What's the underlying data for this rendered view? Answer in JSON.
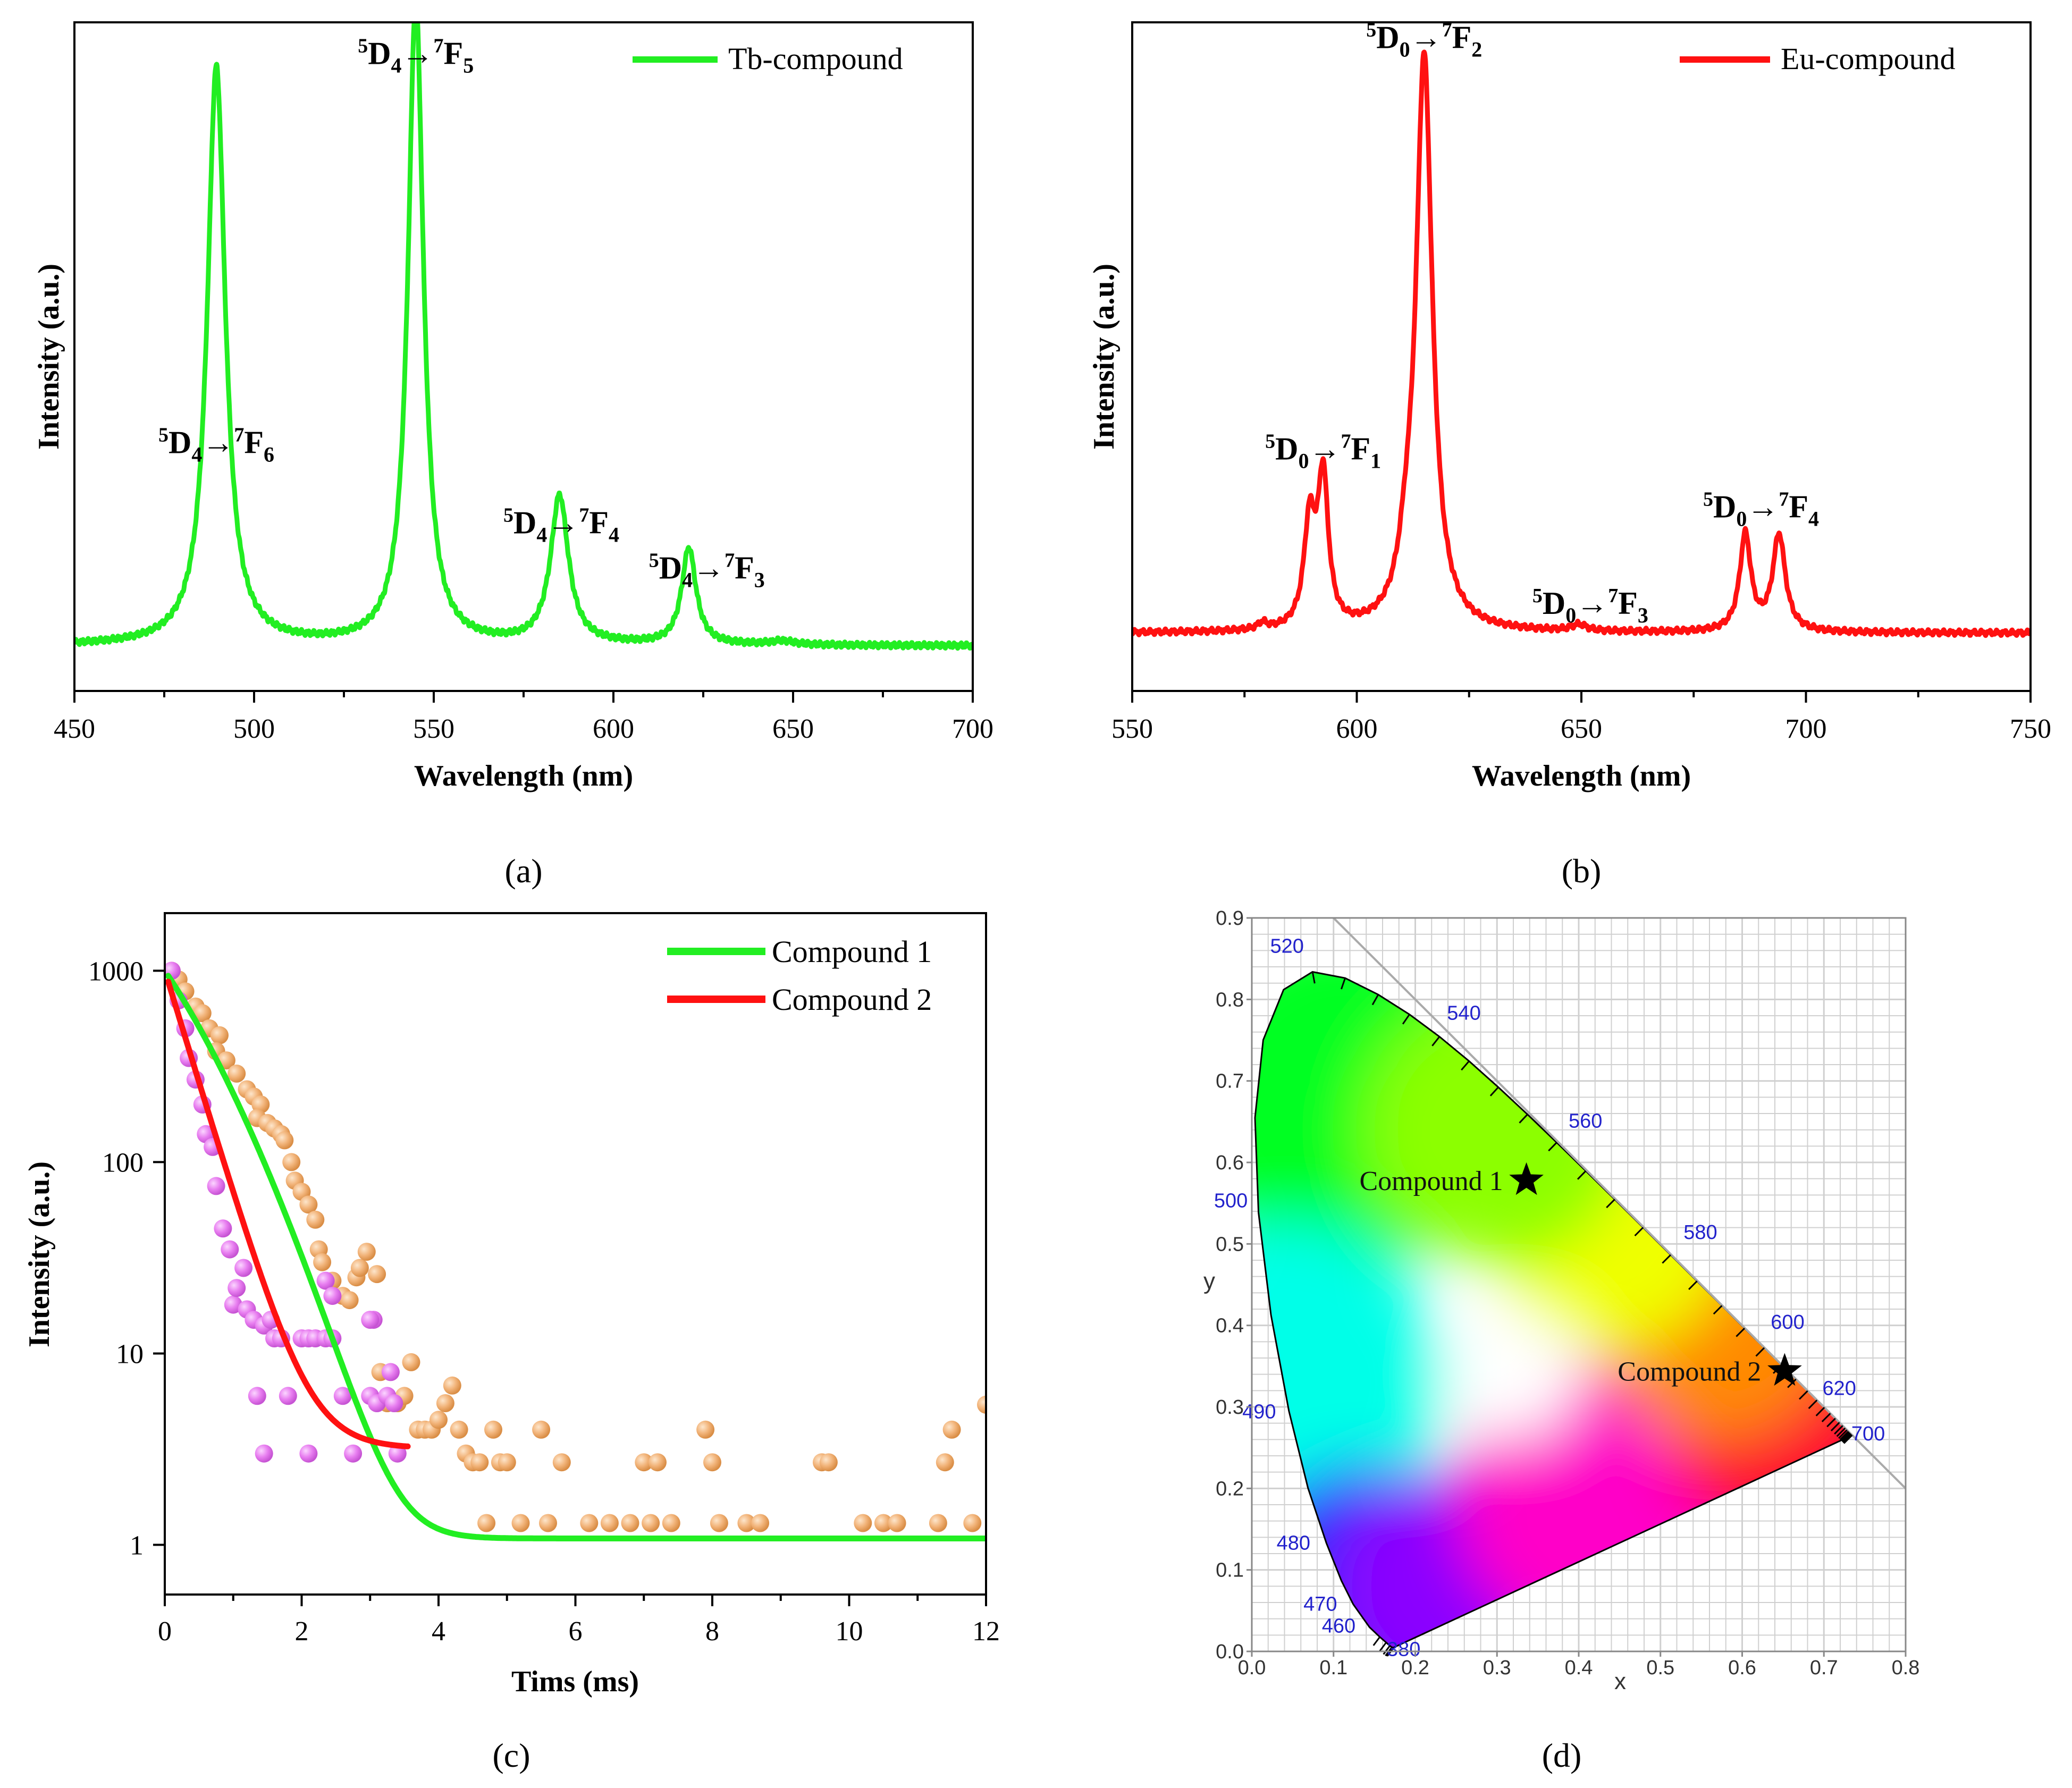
{
  "figure": {
    "panel_labels": [
      "(a)",
      "(b)",
      "(c)",
      "(d)"
    ]
  },
  "chart_data": [
    {
      "panel": "a",
      "type": "line",
      "xlabel": "Wavelength (nm)",
      "ylabel": "Intensity (a.u.)",
      "xlim": [
        450,
        700
      ],
      "ylim": [
        0,
        1.04
      ],
      "xticks": [
        450,
        500,
        550,
        600,
        650,
        700
      ],
      "yticks_shown": false,
      "legend": {
        "position": "top-right",
        "entries": [
          {
            "label": "Tb-compound",
            "color": "#22ee22"
          }
        ]
      },
      "series": [
        {
          "name": "Tb-compound",
          "color": "#22ee22",
          "baseline": 0.07,
          "peaks": [
            {
              "center": 489.5,
              "height": 0.9,
              "width": 3.0
            },
            {
              "center": 545.0,
              "height": 1.0,
              "width": 2.6
            },
            {
              "center": 585.0,
              "height": 0.23,
              "width": 3.0
            },
            {
              "center": 621.0,
              "height": 0.15,
              "width": 2.4
            },
            {
              "center": 647.0,
              "height": 0.006,
              "width": 4.0
            }
          ]
        }
      ],
      "annotations": [
        {
          "base": "D",
          "sup1": "5",
          "sub1": "4",
          "to": "F",
          "sup2": "7",
          "sub2": "6",
          "x": 489.5,
          "y": 0.37
        },
        {
          "base": "D",
          "sup1": "5",
          "sub1": "4",
          "to": "F",
          "sup2": "7",
          "sub2": "5",
          "x": 545.0,
          "y": 0.975
        },
        {
          "base": "D",
          "sup1": "5",
          "sub1": "4",
          "to": "F",
          "sup2": "7",
          "sub2": "4",
          "x": 585.5,
          "y": 0.245
        },
        {
          "base": "D",
          "sup1": "5",
          "sub1": "4",
          "to": "F",
          "sup2": "7",
          "sub2": "3",
          "x": 626.0,
          "y": 0.175
        }
      ]
    },
    {
      "panel": "b",
      "type": "line",
      "xlabel": "Wavelength (nm)",
      "ylabel": "Intensity (a.u.)",
      "xlim": [
        550,
        750
      ],
      "ylim": [
        0,
        1.04
      ],
      "xticks": [
        550,
        600,
        650,
        700,
        750
      ],
      "yticks_shown": false,
      "legend": {
        "position": "top-right",
        "entries": [
          {
            "label": "Eu-compound",
            "color": "#ff1111"
          }
        ]
      },
      "series": [
        {
          "name": "Eu-compound",
          "color": "#ff1111",
          "baseline": 0.09,
          "peaks": [
            {
              "center": 579.0,
              "height": 0.01,
              "width": 1.2
            },
            {
              "center": 589.5,
              "height": 0.16,
              "width": 1.5
            },
            {
              "center": 592.5,
              "height": 0.23,
              "width": 1.4
            },
            {
              "center": 611.0,
              "height": 0.06,
              "width": 2.0
            },
            {
              "center": 615.0,
              "height": 0.89,
              "width": 2.2
            },
            {
              "center": 649.5,
              "height": 0.01,
              "width": 2.0
            },
            {
              "center": 686.5,
              "height": 0.15,
              "width": 1.5
            },
            {
              "center": 694.0,
              "height": 0.15,
              "width": 1.7
            }
          ]
        }
      ],
      "annotations": [
        {
          "base": "D",
          "sup1": "5",
          "sub1": "0",
          "to": "F",
          "sup2": "7",
          "sub2": "1",
          "x": 592.5,
          "y": 0.36
        },
        {
          "base": "D",
          "sup1": "5",
          "sub1": "0",
          "to": "F",
          "sup2": "7",
          "sub2": "2",
          "x": 615.0,
          "y": 1.0
        },
        {
          "base": "D",
          "sup1": "5",
          "sub1": "0",
          "to": "F",
          "sup2": "7",
          "sub2": "3",
          "x": 652.0,
          "y": 0.12
        },
        {
          "base": "D",
          "sup1": "5",
          "sub1": "0",
          "to": "F",
          "sup2": "7",
          "sub2": "4",
          "x": 690.0,
          "y": 0.27
        }
      ]
    },
    {
      "panel": "c",
      "type": "scatter",
      "xlabel": "Tims (ms)",
      "ylabel": "Intensity (a.u.)",
      "xlim": [
        0,
        12
      ],
      "yscale": "log",
      "ylim": [
        0.55,
        2000
      ],
      "xticks": [
        0,
        2,
        4,
        6,
        8,
        10,
        12
      ],
      "yticks": [
        1,
        10,
        100,
        1000
      ],
      "legend": {
        "position": "top-right",
        "entries": [
          {
            "label": "Compound 1",
            "color": "#22ee22"
          },
          {
            "label": "Compound 2",
            "color": "#ff1111"
          }
        ]
      },
      "fit_lines": [
        {
          "name": "Compound 1",
          "color": "#22ee22",
          "A": 1000,
          "tau": 0.65,
          "offset": 1.08,
          "x_range": [
            0.05,
            12
          ],
          "decay_form": "gaussian-like"
        },
        {
          "name": "Compound 2",
          "color": "#ff1111",
          "A": 1000,
          "tau": 0.37,
          "offset": 3.2,
          "x_range": [
            0.05,
            3.55
          ],
          "decay_form": "exponential"
        }
      ],
      "scatter_series": [
        {
          "name": "Compound 1 data",
          "color": "#f2b47a",
          "points": [
            [
              0.1,
              1000
            ],
            [
              0.2,
              900
            ],
            [
              0.3,
              780
            ],
            [
              0.45,
              650
            ],
            [
              0.55,
              600
            ],
            [
              0.65,
              500
            ],
            [
              0.8,
              460
            ],
            [
              0.75,
              380
            ],
            [
              0.9,
              340
            ],
            [
              1.05,
              290
            ],
            [
              1.2,
              240
            ],
            [
              1.3,
              220
            ],
            [
              1.4,
              200
            ],
            [
              1.35,
              170
            ],
            [
              1.5,
              160
            ],
            [
              1.6,
              150
            ],
            [
              1.7,
              140
            ],
            [
              1.75,
              130
            ],
            [
              1.85,
              100
            ],
            [
              1.9,
              80
            ],
            [
              2.0,
              70
            ],
            [
              2.1,
              60
            ],
            [
              2.2,
              50
            ],
            [
              2.25,
              35
            ],
            [
              2.3,
              30
            ],
            [
              2.45,
              24
            ],
            [
              2.6,
              20
            ],
            [
              2.7,
              19
            ],
            [
              2.8,
              25
            ],
            [
              2.85,
              28
            ],
            [
              2.95,
              34
            ],
            [
              3.1,
              26
            ],
            [
              3.15,
              8
            ],
            [
              3.25,
              5.5
            ],
            [
              3.4,
              5.5
            ],
            [
              3.5,
              6
            ],
            [
              3.6,
              9
            ],
            [
              3.7,
              4
            ],
            [
              3.8,
              4
            ],
            [
              3.9,
              4
            ],
            [
              4.0,
              4.5
            ],
            [
              4.1,
              5.5
            ],
            [
              4.2,
              6.8
            ],
            [
              4.3,
              4
            ],
            [
              4.4,
              3
            ],
            [
              4.5,
              2.7
            ],
            [
              4.6,
              2.7
            ],
            [
              4.8,
              4
            ],
            [
              4.9,
              2.7
            ],
            [
              5.0,
              2.7
            ],
            [
              5.5,
              4
            ],
            [
              5.8,
              2.7
            ],
            [
              7.0,
              2.7
            ],
            [
              7.2,
              2.7
            ],
            [
              7.9,
              4
            ],
            [
              8.0,
              2.7
            ],
            [
              9.6,
              2.7
            ],
            [
              9.7,
              2.7
            ],
            [
              11.4,
              2.7
            ],
            [
              11.5,
              4
            ],
            [
              12.0,
              5.4
            ],
            [
              4.7,
              1.3
            ],
            [
              5.2,
              1.3
            ],
            [
              5.6,
              1.3
            ],
            [
              6.2,
              1.3
            ],
            [
              6.5,
              1.3
            ],
            [
              6.8,
              1.3
            ],
            [
              7.1,
              1.3
            ],
            [
              7.4,
              1.3
            ],
            [
              8.1,
              1.3
            ],
            [
              8.5,
              1.3
            ],
            [
              8.7,
              1.3
            ],
            [
              10.2,
              1.3
            ],
            [
              10.5,
              1.3
            ],
            [
              10.7,
              1.3
            ],
            [
              11.3,
              1.3
            ],
            [
              11.8,
              1.3
            ]
          ]
        },
        {
          "name": "Compound 2 data",
          "color": "#e87ef0",
          "points": [
            [
              0.1,
              1000
            ],
            [
              0.2,
              700
            ],
            [
              0.3,
              500
            ],
            [
              0.35,
              350
            ],
            [
              0.45,
              270
            ],
            [
              0.55,
              200
            ],
            [
              0.6,
              140
            ],
            [
              0.7,
              120
            ],
            [
              0.75,
              75
            ],
            [
              0.85,
              45
            ],
            [
              0.95,
              35
            ],
            [
              1.0,
              18
            ],
            [
              1.05,
              22
            ],
            [
              1.15,
              28
            ],
            [
              1.2,
              17
            ],
            [
              1.3,
              15
            ],
            [
              1.45,
              14
            ],
            [
              1.55,
              15
            ],
            [
              1.6,
              12
            ],
            [
              1.7,
              12
            ],
            [
              2.0,
              12
            ],
            [
              2.1,
              12
            ],
            [
              2.2,
              12
            ],
            [
              2.35,
              12
            ],
            [
              2.45,
              12
            ],
            [
              2.35,
              24
            ],
            [
              2.45,
              20
            ],
            [
              1.35,
              6
            ],
            [
              1.8,
              6
            ],
            [
              2.6,
              6
            ],
            [
              3.0,
              6
            ],
            [
              3.1,
              5.5
            ],
            [
              3.25,
              6
            ],
            [
              3.35,
              5.5
            ],
            [
              3.3,
              8
            ],
            [
              3.05,
              15
            ],
            [
              3.0,
              15
            ],
            [
              1.45,
              3
            ],
            [
              2.1,
              3
            ],
            [
              2.75,
              3
            ],
            [
              3.4,
              3
            ]
          ]
        }
      ]
    },
    {
      "panel": "d",
      "type": "scatter",
      "subtype": "CIE 1931 chromaticity diagram",
      "xlabel": "x",
      "ylabel": "y",
      "xlim": [
        0,
        0.8
      ],
      "ylim": [
        0,
        0.9
      ],
      "xticks": [
        0.0,
        0.1,
        0.2,
        0.3,
        0.4,
        0.5,
        0.6,
        0.7,
        0.8
      ],
      "yticks": [
        0.0,
        0.1,
        0.2,
        0.3,
        0.4,
        0.5,
        0.6,
        0.7,
        0.8,
        0.9
      ],
      "grid": true,
      "locus_wavelength_labels": [
        {
          "label": "380",
          "x": 0.1741,
          "y": 0.005
        },
        {
          "label": "460",
          "x": 0.144,
          "y": 0.0297
        },
        {
          "label": "470",
          "x": 0.1241,
          "y": 0.0578
        },
        {
          "label": "480",
          "x": 0.0913,
          "y": 0.1327
        },
        {
          "label": "490",
          "x": 0.0454,
          "y": 0.295
        },
        {
          "label": "500",
          "x": 0.0082,
          "y": 0.5384
        },
        {
          "label": "520",
          "x": 0.0743,
          "y": 0.8338
        },
        {
          "label": "540",
          "x": 0.2296,
          "y": 0.7543
        },
        {
          "label": "560",
          "x": 0.3731,
          "y": 0.6245
        },
        {
          "label": "580",
          "x": 0.5125,
          "y": 0.4866
        },
        {
          "label": "600",
          "x": 0.627,
          "y": 0.3725
        },
        {
          "label": "620",
          "x": 0.6915,
          "y": 0.3083
        },
        {
          "label": "700",
          "x": 0.7347,
          "y": 0.2653
        }
      ],
      "points": [
        {
          "label": "Compound 1",
          "x": 0.336,
          "y": 0.578
        },
        {
          "label": "Compound 2",
          "x": 0.652,
          "y": 0.344
        }
      ]
    }
  ]
}
